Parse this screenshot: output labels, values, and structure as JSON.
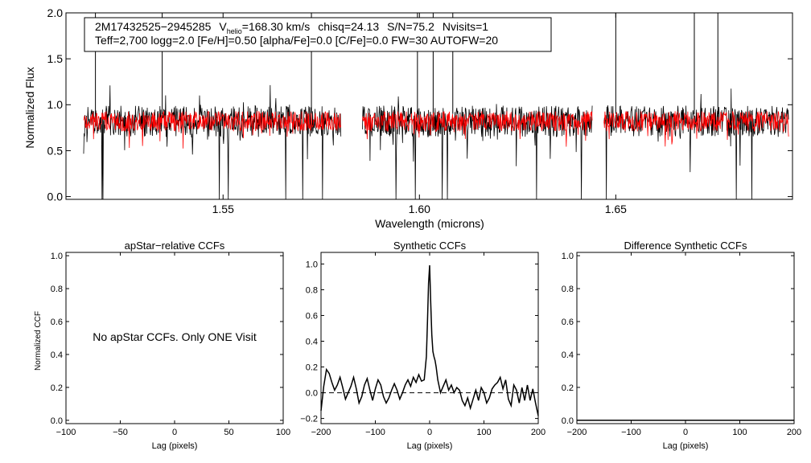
{
  "header": {
    "star_id": "2M17432525−2945285",
    "vhelio_label": "V",
    "vhelio_sub": "helio",
    "vhelio_value": "=168.30 km/s",
    "chisq": "chisq=24.13",
    "sn": "S/N=75.2",
    "nvisits": "Nvisits=1",
    "params": "Teff=2,700 logg=2.0 [Fe/H]=0.50 [alpha/Fe]=0.0 [C/Fe]=0.0 FW=30 AUTOFW=20"
  },
  "chart_data": [
    {
      "type": "line",
      "id": "spectrum",
      "xlabel": "Wavelength (microns)",
      "ylabel": "Normalized Flux",
      "xlim": [
        1.51,
        1.695
      ],
      "ylim": [
        -0.03,
        2.0
      ],
      "xticks": [
        1.55,
        1.6,
        1.65
      ],
      "xtick_labels": [
        "1.55",
        "1.60",
        "1.65"
      ],
      "yticks": [
        0.0,
        0.5,
        1.0,
        1.5,
        2.0
      ],
      "ytick_labels": [
        "0.0",
        "0.5",
        "1.0",
        "1.5",
        "2.0"
      ],
      "chips": [
        [
          1.5145,
          1.58
        ],
        [
          1.5855,
          1.644
        ],
        [
          1.647,
          1.694
        ]
      ],
      "series": [
        {
          "name": "observed",
          "color": "#000000",
          "mean": 0.82,
          "noise": 0.17,
          "spike_at": [
            1.5175,
            1.5345,
            1.5725,
            1.5995,
            1.6035,
            1.6085,
            1.65,
            1.67,
            1.676
          ]
        },
        {
          "name": "synthetic",
          "color": "#ff0000",
          "mean": 0.82,
          "noise": 0.11
        }
      ]
    },
    {
      "type": "line",
      "id": "apstar_ccf",
      "title": "apStar−relative CCFs",
      "xlabel": "Lag (pixels)",
      "ylabel": "Normalized CCF",
      "xlim": [
        -100,
        100
      ],
      "ylim": [
        -0.02,
        1.02
      ],
      "xticks": [
        -100,
        -50,
        0,
        50,
        100
      ],
      "xtick_labels": [
        "−100",
        "−50",
        "0",
        "50",
        "100"
      ],
      "yticks": [
        0.0,
        0.2,
        0.4,
        0.6,
        0.8,
        1.0
      ],
      "ytick_labels": [
        "0.0",
        "0.2",
        "0.4",
        "0.6",
        "0.8",
        "1.0"
      ],
      "annotation": "No apStar CCFs.  Only ONE Visit",
      "series": []
    },
    {
      "type": "line",
      "id": "synthetic_ccf",
      "title": "Synthetic CCFs",
      "xlabel": "Lag (pixels)",
      "xlim": [
        -200,
        200
      ],
      "ylim": [
        -0.24,
        1.09
      ],
      "xticks": [
        -200,
        -100,
        0,
        100,
        200
      ],
      "xtick_labels": [
        "−200",
        "−100",
        "0",
        "100",
        "200"
      ],
      "yticks": [
        -0.2,
        0.0,
        0.2,
        0.4,
        0.6,
        0.8,
        1.0
      ],
      "ytick_labels": [
        "−0.2",
        "0.0",
        "0.2",
        "0.4",
        "0.6",
        "0.8",
        "1.0"
      ],
      "reference_line": 0.0,
      "series": [
        {
          "name": "ccf",
          "color": "#000000",
          "x": [
            -200,
            -195,
            -190,
            -185,
            -180,
            -175,
            -170,
            -165,
            -160,
            -155,
            -150,
            -145,
            -140,
            -135,
            -130,
            -125,
            -120,
            -115,
            -110,
            -105,
            -100,
            -95,
            -90,
            -85,
            -80,
            -75,
            -70,
            -65,
            -60,
            -55,
            -50,
            -45,
            -40,
            -35,
            -30,
            -25,
            -20,
            -15,
            -10,
            -6,
            -4,
            -2,
            0,
            2,
            4,
            6,
            8,
            10,
            12,
            15,
            20,
            25,
            30,
            35,
            40,
            45,
            50,
            55,
            60,
            65,
            70,
            75,
            80,
            85,
            90,
            95,
            100,
            105,
            110,
            115,
            120,
            125,
            130,
            135,
            140,
            145,
            150,
            155,
            160,
            165,
            170,
            175,
            180,
            185,
            190,
            195,
            200
          ],
          "y": [
            -0.14,
            0.05,
            0.18,
            0.15,
            0.08,
            0.02,
            0.06,
            0.12,
            0.04,
            -0.05,
            0.0,
            0.05,
            0.12,
            0.03,
            -0.08,
            -0.03,
            0.06,
            0.11,
            0.02,
            -0.06,
            0.03,
            0.1,
            0.06,
            -0.03,
            -0.08,
            -0.04,
            0.02,
            0.07,
            0.02,
            -0.05,
            0.0,
            0.06,
            0.1,
            0.05,
            0.12,
            0.08,
            0.14,
            0.09,
            0.1,
            0.28,
            0.55,
            0.85,
            0.99,
            0.7,
            0.45,
            0.32,
            0.28,
            0.25,
            0.2,
            0.1,
            0.0,
            0.05,
            0.1,
            0.02,
            0.06,
            0.0,
            0.04,
            0.02,
            -0.06,
            -0.1,
            -0.04,
            -0.12,
            -0.05,
            0.02,
            -0.06,
            0.04,
            0.0,
            -0.08,
            -0.04,
            0.03,
            0.06,
            0.08,
            0.12,
            0.03,
            0.1,
            -0.05,
            -0.1,
            0.06,
            0.02,
            -0.08,
            0.04,
            -0.06,
            0.06,
            -0.06,
            0.03,
            -0.08,
            -0.18
          ]
        }
      ]
    },
    {
      "type": "line",
      "id": "difference_ccf",
      "title": "Difference Synthetic CCFs",
      "xlabel": "Lag (pixels)",
      "xlim": [
        -200,
        200
      ],
      "ylim": [
        -0.02,
        1.02
      ],
      "xticks": [
        -200,
        -100,
        0,
        100,
        200
      ],
      "xtick_labels": [
        "−200",
        "−100",
        "0",
        "100",
        "200"
      ],
      "yticks": [
        0.0,
        0.2,
        0.4,
        0.6,
        0.8,
        1.0
      ],
      "ytick_labels": [
        "0.0",
        "0.2",
        "0.4",
        "0.6",
        "0.8",
        "1.0"
      ],
      "series": [
        {
          "name": "difference",
          "color": "#000000",
          "x": [
            -200,
            200
          ],
          "y": [
            0.0,
            0.0
          ]
        }
      ]
    }
  ]
}
